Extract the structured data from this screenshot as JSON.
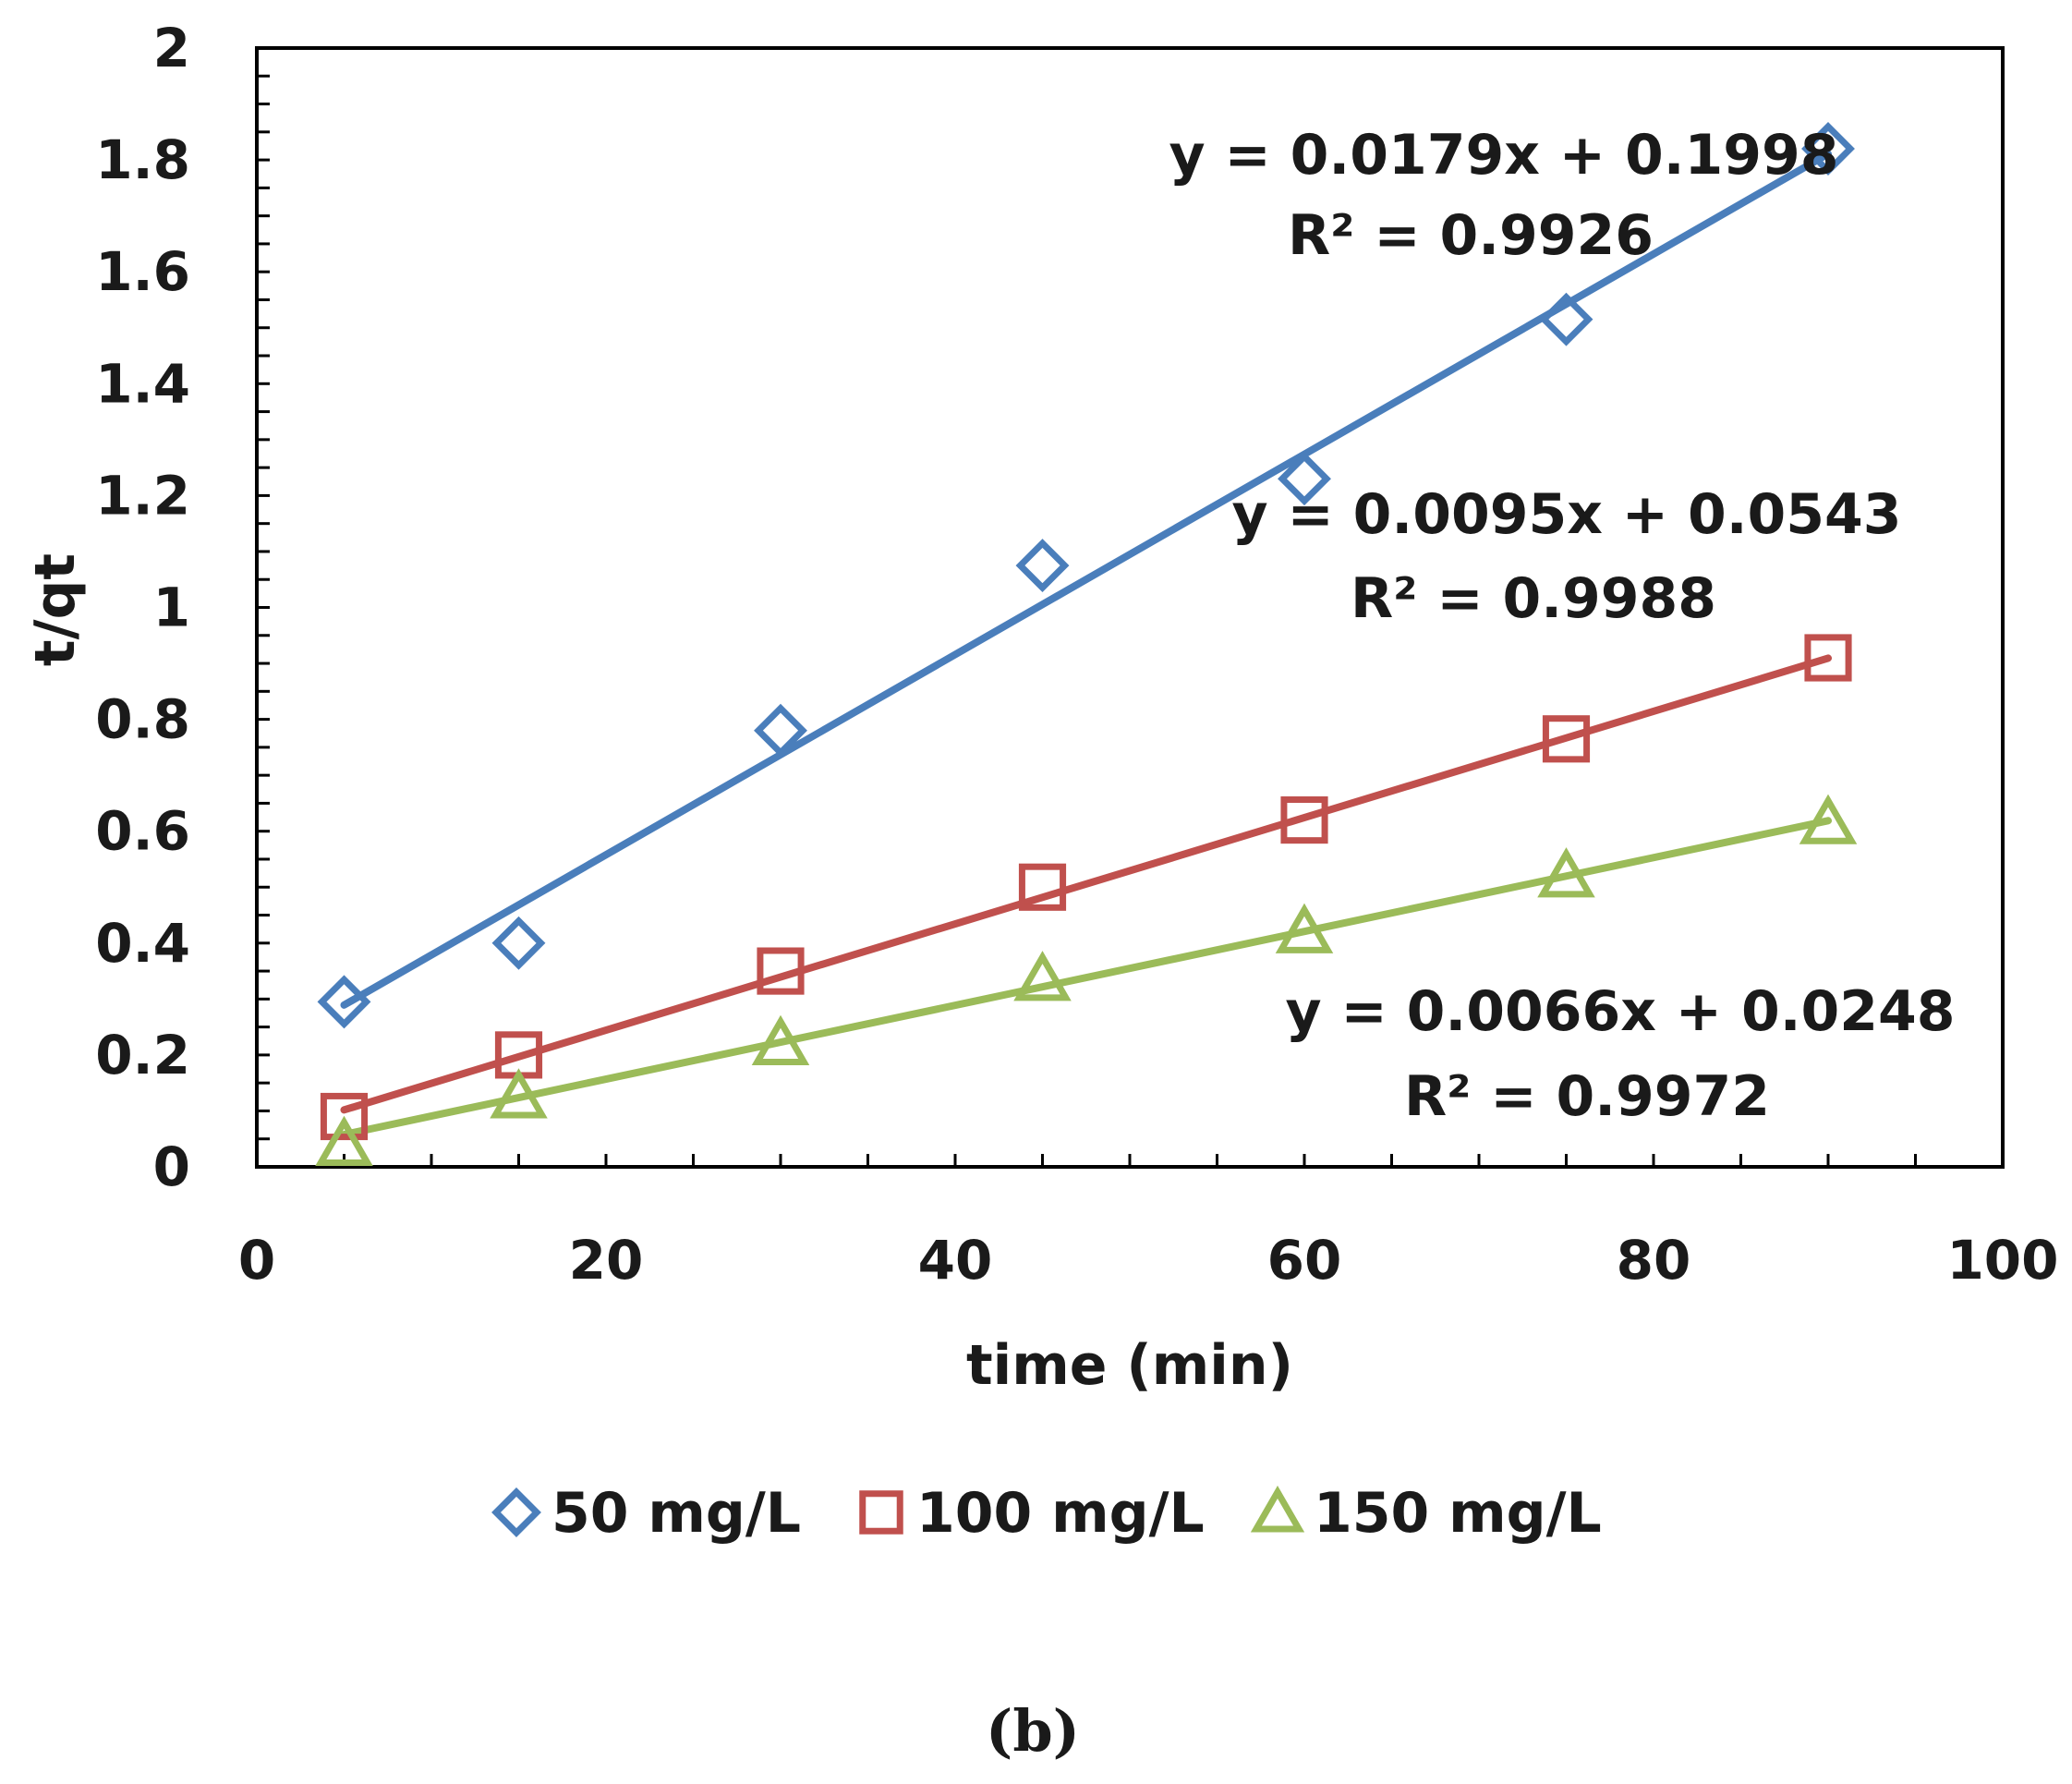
{
  "chart_data": {
    "type": "scatter",
    "x": [
      5,
      15,
      30,
      45,
      60,
      75,
      90
    ],
    "series": [
      {
        "name": "50 mg/L",
        "color": "#4a7ebb",
        "marker": "diamond",
        "values": [
          0.295,
          0.4,
          0.78,
          1.075,
          1.23,
          1.515,
          1.82
        ],
        "trendline": {
          "slope": 0.0179,
          "intercept": 0.1998,
          "x_range": [
            5,
            90
          ]
        },
        "equation": "y = 0.0179x + 0.1998",
        "r2_label": "R² = 0.9926"
      },
      {
        "name": "100 mg/L",
        "color": "#c0504d",
        "marker": "square",
        "values": [
          0.09,
          0.2,
          0.35,
          0.5,
          0.62,
          0.765,
          0.91
        ],
        "trendline": {
          "slope": 0.0095,
          "intercept": 0.0543,
          "x_range": [
            5,
            90
          ]
        },
        "equation": "y = 0.0095x + 0.0543",
        "r2_label": "R² = 0.9988"
      },
      {
        "name": "150 mg/L",
        "color": "#9bbb59",
        "marker": "triangle",
        "values": [
          0.04,
          0.125,
          0.22,
          0.335,
          0.42,
          0.52,
          0.615
        ],
        "trendline": {
          "slope": 0.0066,
          "intercept": 0.0248,
          "x_range": [
            5,
            90
          ]
        },
        "equation": "y = 0.0066x + 0.0248",
        "r2_label": "R² = 0.9972"
      }
    ],
    "title": "",
    "xlabel": "time (min)",
    "ylabel": "t/qt",
    "xlim": [
      0,
      100
    ],
    "ylim": [
      0,
      2
    ],
    "x_ticks": [
      "0",
      "20",
      "40",
      "60",
      "80",
      "100"
    ],
    "y_ticks": [
      "0",
      "0.2",
      "0.4",
      "0.6",
      "0.8",
      "1",
      "1.2",
      "1.4",
      "1.6",
      "1.8",
      "2"
    ],
    "grid": false,
    "legend_position": "bottom",
    "caption": "(b)"
  }
}
